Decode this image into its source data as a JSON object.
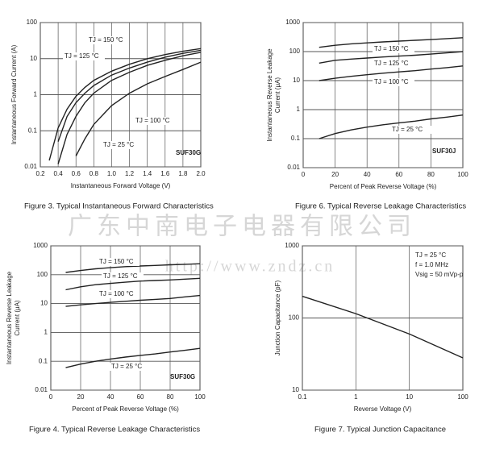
{
  "chart_data": [
    {
      "type": "line",
      "title": "Figure 3. Typical Instantaneous Forward Characteristics",
      "xlabel": "Instantaneous Forward Voltage (V)",
      "ylabel": [
        "Instantaneous Forward Current (A)"
      ],
      "xlim": [
        0.2,
        2.0
      ],
      "xticks": [
        0.2,
        0.4,
        0.6,
        0.8,
        {
          "value": 1,
          "label": "1.0"
        },
        1.2,
        1.4,
        1.6,
        1.8,
        {
          "value": 2,
          "label": "2.0"
        }
      ],
      "ylim": [
        0.01,
        100
      ],
      "yticks": [
        0.01,
        0.1,
        1,
        10,
        100
      ],
      "ylog": true,
      "grid": true,
      "annotations": [
        "SUF30G"
      ],
      "x": [
        0.3,
        0.4,
        0.5,
        0.6,
        0.7,
        0.8,
        1.0,
        1.2,
        1.4,
        1.6,
        1.8,
        2.0
      ],
      "series": [
        {
          "name": "TJ = 150 °C",
          "color": "#222",
          "values": [
            0.015,
            0.12,
            0.4,
            0.9,
            1.6,
            2.5,
            4.5,
            7,
            10,
            13,
            16,
            19
          ]
        },
        {
          "name": "TJ = 125 °C",
          "color": "#222",
          "values": [
            null,
            0.05,
            0.25,
            0.6,
            1.1,
            1.8,
            3.5,
            5.5,
            8,
            11,
            14,
            17
          ]
        },
        {
          "name": "TJ = 100 °C",
          "color": "#222",
          "values": [
            null,
            0.012,
            0.08,
            0.25,
            0.6,
            1.1,
            2.5,
            4.2,
            6.5,
            9,
            12,
            15
          ]
        },
        {
          "name": "TJ = 25 °C",
          "color": "#222",
          "values": [
            null,
            null,
            null,
            0.02,
            0.06,
            0.15,
            0.5,
            1.1,
            2,
            3.2,
            5,
            8
          ]
        }
      ]
    },
    {
      "type": "line",
      "title": "Figure 6. Typical Reverse Leakage Characteristics",
      "xlabel": "Percent of Peak Reverse Voltage (%)",
      "ylabel": [
        "Instantaneous Reverse Leakage",
        "Current (μA)"
      ],
      "xlim": [
        0,
        100
      ],
      "xticks": [
        0,
        20,
        40,
        60,
        80,
        100
      ],
      "ylim": [
        0.01,
        1000
      ],
      "yticks": [
        0.01,
        0.1,
        1,
        10,
        100,
        1000
      ],
      "ylog": true,
      "grid": true,
      "annotations": [
        "SUF30J"
      ],
      "x": [
        10,
        20,
        30,
        40,
        50,
        60,
        70,
        80,
        90,
        100
      ],
      "series": [
        {
          "name": "TJ = 150 °C",
          "color": "#222",
          "values": [
            140,
            165,
            185,
            200,
            215,
            230,
            245,
            260,
            280,
            300
          ]
        },
        {
          "name": "TJ = 125 °C",
          "color": "#222",
          "values": [
            40,
            50,
            55,
            60,
            65,
            70,
            75,
            82,
            90,
            100
          ]
        },
        {
          "name": "TJ = 100 °C",
          "color": "#222",
          "values": [
            10,
            12,
            14,
            16,
            18,
            20,
            22,
            25,
            28,
            32
          ]
        },
        {
          "name": "TJ = 25 °C",
          "color": "#222",
          "values": [
            0.1,
            0.15,
            0.2,
            0.25,
            0.3,
            0.35,
            0.4,
            0.48,
            0.55,
            0.65
          ]
        }
      ]
    },
    {
      "type": "line",
      "title": "Figure 4. Typical Reverse Leakage Characteristics",
      "xlabel": "Percent of Peak Reverse Voltage (%)",
      "ylabel": [
        "Instantaneous Reverse Leakage",
        "Current (μA)"
      ],
      "xlim": [
        0,
        100
      ],
      "xticks": [
        0,
        20,
        40,
        60,
        80,
        100
      ],
      "ylim": [
        0.01,
        1000
      ],
      "yticks": [
        0.01,
        0.1,
        1,
        10,
        100,
        1000
      ],
      "ylog": true,
      "grid": true,
      "annotations": [
        "SUF30G"
      ],
      "x": [
        10,
        20,
        30,
        40,
        50,
        60,
        70,
        80,
        90,
        100
      ],
      "series": [
        {
          "name": "TJ = 150 °C",
          "color": "#222",
          "values": [
            120,
            140,
            160,
            175,
            190,
            200,
            210,
            220,
            230,
            240
          ]
        },
        {
          "name": "TJ = 125 °C",
          "color": "#222",
          "values": [
            30,
            38,
            45,
            50,
            55,
            60,
            63,
            66,
            70,
            75
          ]
        },
        {
          "name": "TJ = 100 °C",
          "color": "#222",
          "values": [
            8,
            9,
            10,
            11,
            12,
            13,
            14,
            15,
            17,
            19
          ]
        },
        {
          "name": "TJ = 25 °C",
          "color": "#222",
          "values": [
            0.06,
            0.08,
            0.1,
            0.12,
            0.14,
            0.16,
            0.18,
            0.21,
            0.24,
            0.28
          ]
        }
      ]
    },
    {
      "type": "line",
      "title": "Figure 7.  Typical Junction Capacitance",
      "xlabel": "Reverse Voltage (V)",
      "ylabel": [
        "Junction Capacitance (pF)"
      ],
      "xlim": [
        0.1,
        100
      ],
      "xticks": [
        0.1,
        1,
        10,
        100
      ],
      "xlog": true,
      "ylim": [
        10,
        1000
      ],
      "yticks": [
        10,
        100,
        1000
      ],
      "ylog": true,
      "grid": true,
      "annotations": [
        "TJ = 25 °C",
        "f = 1.0 MHz",
        "Vsig = 50 mVp-p"
      ],
      "x": [
        0.1,
        1,
        10,
        100
      ],
      "values": [
        200,
        115,
        60,
        28
      ],
      "color": "#222"
    }
  ],
  "watermark": [
    "广东中南电子电器有限公司",
    "http://www.zndz.cn"
  ]
}
